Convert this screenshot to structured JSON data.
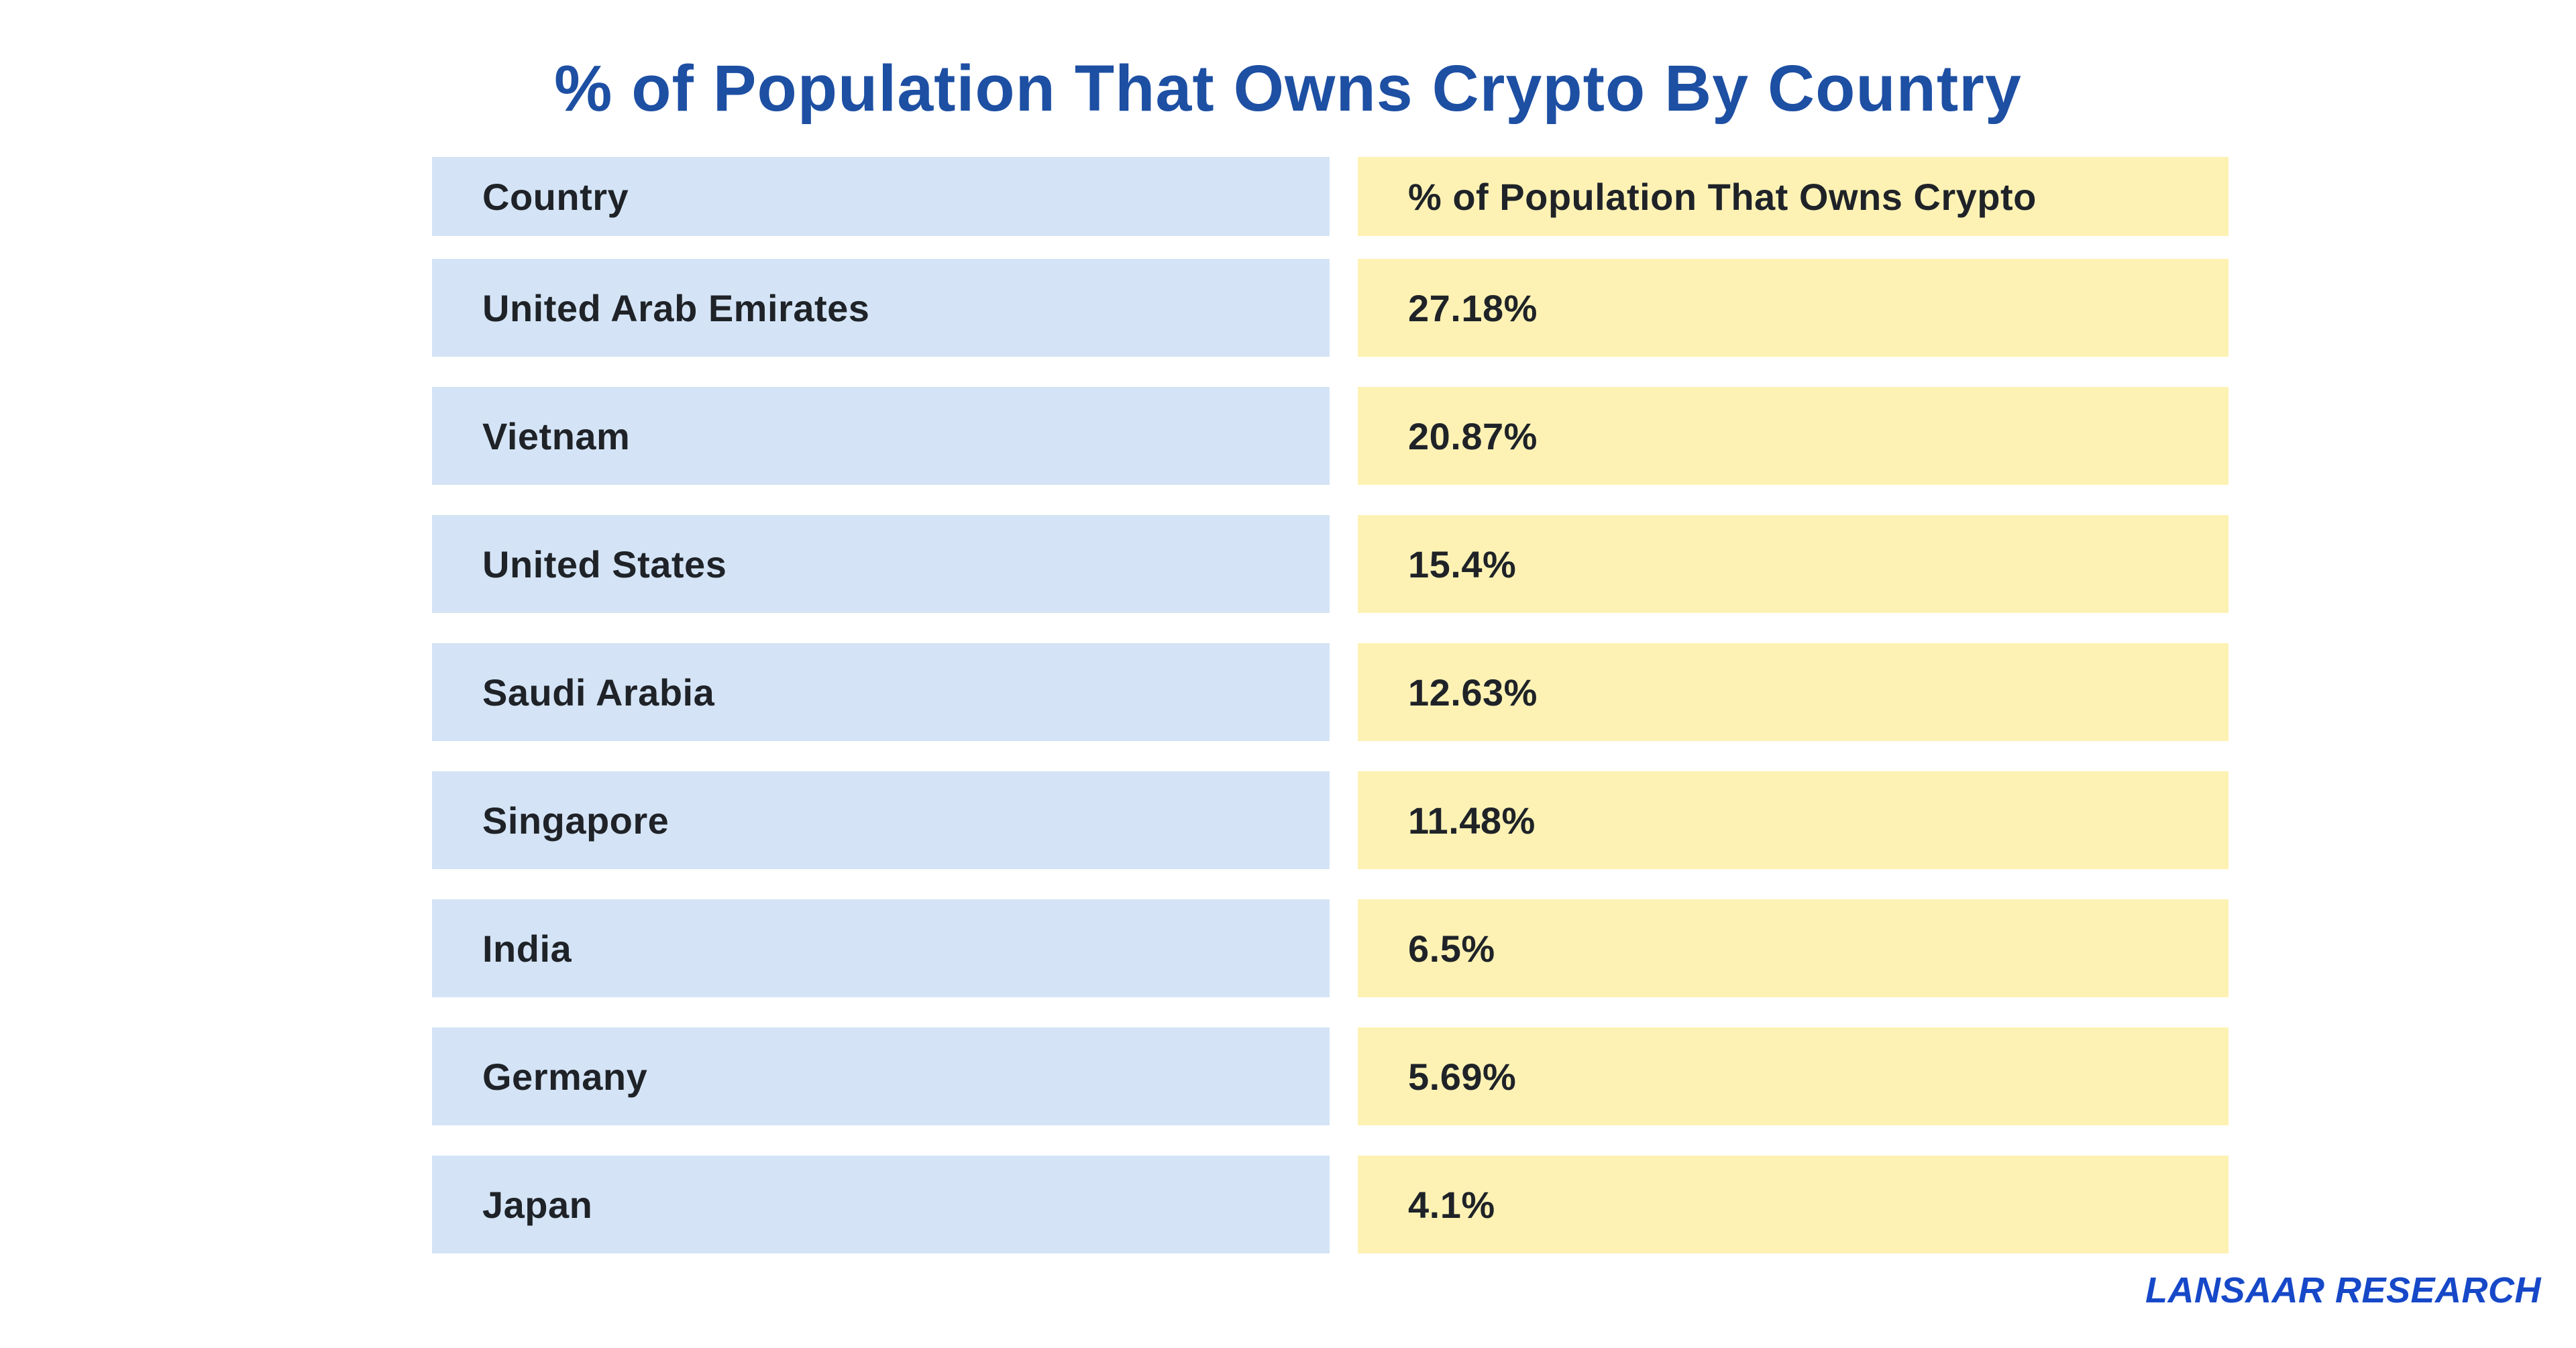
{
  "title": "% of Population That Owns Crypto By Country",
  "footer": {
    "brand": "LANSAAR RESEARCH"
  },
  "table": {
    "headers": {
      "country": "Country",
      "value": "% of Population That Owns Crypto"
    },
    "rows": [
      {
        "country": "United Arab Emirates",
        "value": "27.18%"
      },
      {
        "country": "Vietnam",
        "value": "20.87%"
      },
      {
        "country": "United States",
        "value": "15.4%"
      },
      {
        "country": "Saudi Arabia",
        "value": "12.63%"
      },
      {
        "country": "Singapore",
        "value": "11.48%"
      },
      {
        "country": "India",
        "value": "6.5%"
      },
      {
        "country": "Germany",
        "value": "5.69%"
      },
      {
        "country": "Japan",
        "value": "4.1%"
      }
    ]
  },
  "colors": {
    "title": "#1d4fa3",
    "country_cell_bg": "#d4e4f6",
    "value_cell_bg": "#fdf2b4",
    "cell_text": "#1f2328",
    "brand_text": "#1648c8",
    "background": "#ffffff"
  },
  "chart_data": {
    "type": "table",
    "title": "% of Population That Owns Crypto By Country",
    "columns": [
      "Country",
      "% of Population That Owns Crypto"
    ],
    "categories": [
      "United Arab Emirates",
      "Vietnam",
      "United States",
      "Saudi Arabia",
      "Singapore",
      "India",
      "Germany",
      "Japan"
    ],
    "values": [
      27.18,
      20.87,
      15.4,
      12.63,
      11.48,
      6.5,
      5.69,
      4.1
    ],
    "value_labels": [
      "27.18%",
      "20.87%",
      "15.4%",
      "12.63%",
      "11.48%",
      "6.5%",
      "5.69%",
      "4.1%"
    ],
    "legend": "none",
    "grid": "off"
  }
}
